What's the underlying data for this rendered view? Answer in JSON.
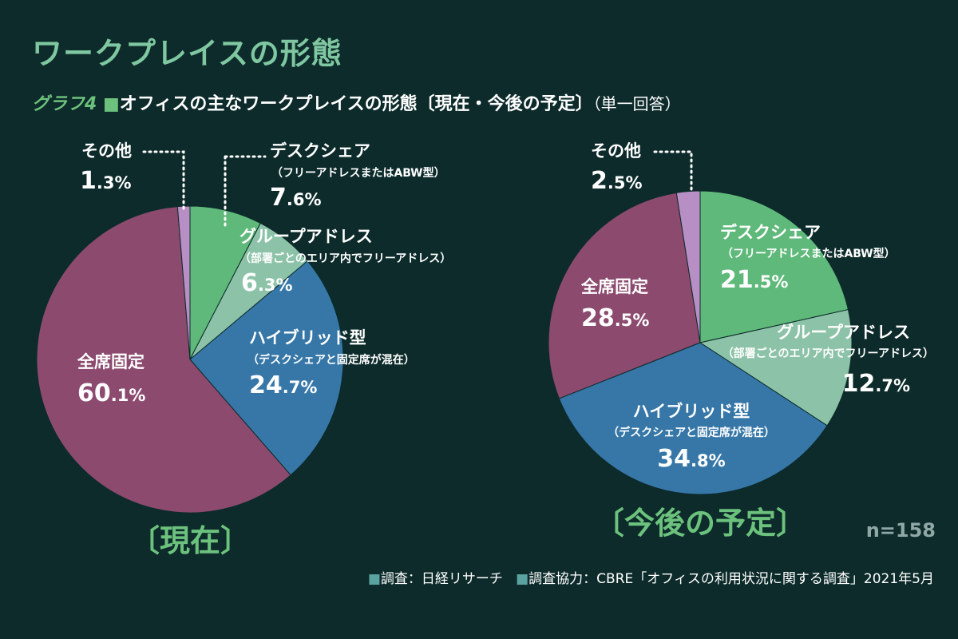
{
  "title": "ワークプレイスの形態",
  "subtitle": {
    "graph_label": "グラフ4",
    "square": "■",
    "text": "オフィスの主なワークプレイスの形態〔現在・今後の予定〕",
    "note": "（単一回答）"
  },
  "sample_size": "n=158",
  "footer": {
    "square": "■",
    "survey": "調査：日経リサーチ",
    "cooperation": "調査協力：CBRE「オフィスの利用状況に関する調査」2021年5月"
  },
  "colors": {
    "background": "#0d2b2b",
    "title": "#7fc7a0",
    "desk_share": "#5fb97a",
    "group_address": "#8cc3a8",
    "hybrid": "#3677a8",
    "fixed": "#8b4a6e",
    "other": "#b88fc4",
    "label_green": "#6cc27d",
    "n_label": "#8fa8a6"
  },
  "chart_data": [
    {
      "type": "pie",
      "title": "〔現在〕",
      "start_angle_deg": 0,
      "direction": "clockwise",
      "slices": [
        {
          "name": "デスクシェア",
          "sub": "（フリーアドレスまたはABW型）",
          "value": 7.6,
          "label": "7.6",
          "unit": "%",
          "color": "#5fb97a"
        },
        {
          "name": "グループアドレス",
          "sub": "（部署ごとのエリア内でフリーアドレス）",
          "value": 6.3,
          "label": "6.3",
          "unit": "%",
          "color": "#8cc3a8"
        },
        {
          "name": "ハイブリッド型",
          "sub": "（デスクシェアと固定席が混在）",
          "value": 24.7,
          "label": "24.7",
          "unit": "%",
          "color": "#3677a8"
        },
        {
          "name": "全席固定",
          "sub": "",
          "value": 60.1,
          "label": "60.1",
          "unit": "%",
          "color": "#8b4a6e"
        },
        {
          "name": "その他",
          "sub": "",
          "value": 1.3,
          "label": "1.3",
          "unit": "%",
          "color": "#b88fc4"
        }
      ]
    },
    {
      "type": "pie",
      "title": "〔今後の予定〕",
      "start_angle_deg": 0,
      "direction": "clockwise",
      "slices": [
        {
          "name": "デスクシェア",
          "sub": "（フリーアドレスまたはABW型）",
          "value": 21.5,
          "label": "21.5",
          "unit": "%",
          "color": "#5fb97a"
        },
        {
          "name": "グループアドレス",
          "sub": "（部署ごとのエリア内でフリーアドレス）",
          "value": 12.7,
          "label": "12.7",
          "unit": "%",
          "color": "#8cc3a8"
        },
        {
          "name": "ハイブリッド型",
          "sub": "（デスクシェアと固定席が混在）",
          "value": 34.8,
          "label": "34.8",
          "unit": "%",
          "color": "#3677a8"
        },
        {
          "name": "全席固定",
          "sub": "",
          "value": 28.5,
          "label": "28.5",
          "unit": "%",
          "color": "#8b4a6e"
        },
        {
          "name": "その他",
          "sub": "",
          "value": 2.5,
          "label": "2.5",
          "unit": "%",
          "color": "#b88fc4"
        }
      ]
    }
  ]
}
